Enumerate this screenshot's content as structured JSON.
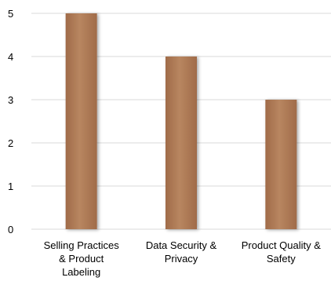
{
  "chart_data": {
    "type": "bar",
    "categories": [
      [
        "Selling Practices",
        "& Product",
        "Labeling"
      ],
      [
        "Data Security &",
        "Privacy"
      ],
      [
        "Product Quality &",
        "Safety"
      ]
    ],
    "values": [
      5,
      4,
      3
    ],
    "title": "",
    "xlabel": "",
    "ylabel": "",
    "ylim": [
      0,
      5
    ],
    "yticks": [
      0,
      1,
      2,
      3,
      4,
      5
    ],
    "grid": true,
    "legend": "none",
    "bar_color": "#B07A55",
    "grid_color": "#D9D9D9"
  }
}
